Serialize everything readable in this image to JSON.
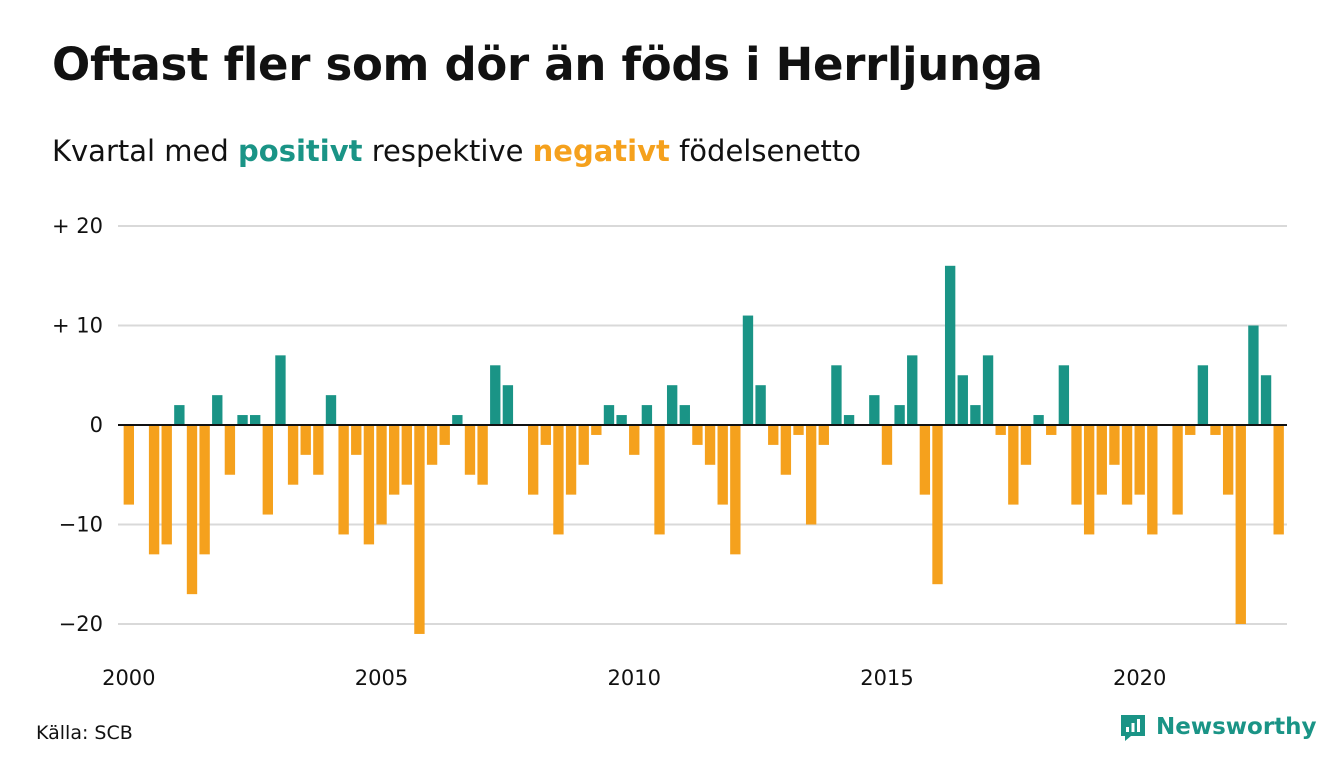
{
  "title": "Oftast fler som dör än föds i Herrljunga",
  "subtitle": {
    "part1": "Kvartal med ",
    "positive_word": "positivt",
    "part2": " respektive ",
    "negative_word": "negativt",
    "part3": " födelsenetto"
  },
  "colors": {
    "positive": "#1a9486",
    "negative": "#f5a11d",
    "grid": "#d9d9d9",
    "zero": "#111111"
  },
  "source": "Källa: SCB",
  "brand": {
    "name": "Newsworthy",
    "icon": "newsworthy-logo-icon"
  },
  "chart_data": {
    "type": "bar",
    "ylim": [
      -21,
      20
    ],
    "yticks": [
      {
        "value": 20,
        "label": "+ 20"
      },
      {
        "value": 10,
        "label": "+ 10"
      },
      {
        "value": 0,
        "label": "0"
      },
      {
        "value": -10,
        "label": "−10"
      },
      {
        "value": -20,
        "label": "−20"
      }
    ],
    "xticks": [
      "2000",
      "2005",
      "2010",
      "2015",
      "2020"
    ],
    "x_start": "2000-Q1",
    "x_end": "2022-Q4",
    "grid": true,
    "values": [
      -8,
      0,
      -13,
      -12,
      2,
      -17,
      -13,
      3,
      -5,
      1,
      1,
      -9,
      7,
      -6,
      -3,
      -5,
      3,
      -11,
      -3,
      -12,
      -10,
      -7,
      -6,
      -21,
      -4,
      -2,
      1,
      -5,
      -6,
      6,
      4,
      0,
      -7,
      -2,
      -11,
      -7,
      -4,
      -1,
      2,
      1,
      -3,
      2,
      -11,
      4,
      2,
      -2,
      -4,
      -8,
      -13,
      11,
      4,
      -2,
      -5,
      -1,
      -10,
      -2,
      6,
      1,
      0,
      3,
      -4,
      2,
      7,
      -7,
      -16,
      16,
      5,
      2,
      7,
      -1,
      -8,
      -4,
      1,
      -1,
      6,
      -8,
      -11,
      -7,
      -4,
      -8,
      -7,
      -11,
      0,
      -9,
      -1,
      6,
      -1,
      -7,
      -20,
      10,
      5,
      -11
    ]
  }
}
